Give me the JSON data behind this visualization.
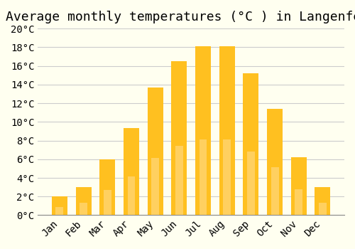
{
  "title": "Average monthly temperatures (°C ) in Langenfeld",
  "months": [
    "Jan",
    "Feb",
    "Mar",
    "Apr",
    "May",
    "Jun",
    "Jul",
    "Aug",
    "Sep",
    "Oct",
    "Nov",
    "Dec"
  ],
  "temperatures": [
    2.0,
    3.0,
    6.0,
    9.3,
    13.7,
    16.5,
    18.1,
    18.1,
    15.2,
    11.4,
    6.2,
    3.0
  ],
  "bar_color_top": "#FFC020",
  "bar_color_bottom": "#FFD060",
  "background_color": "#FFFFF0",
  "grid_color": "#CCCCCC",
  "ylim": [
    0,
    20
  ],
  "ytick_step": 2,
  "title_fontsize": 13,
  "tick_fontsize": 10,
  "font_family": "monospace"
}
